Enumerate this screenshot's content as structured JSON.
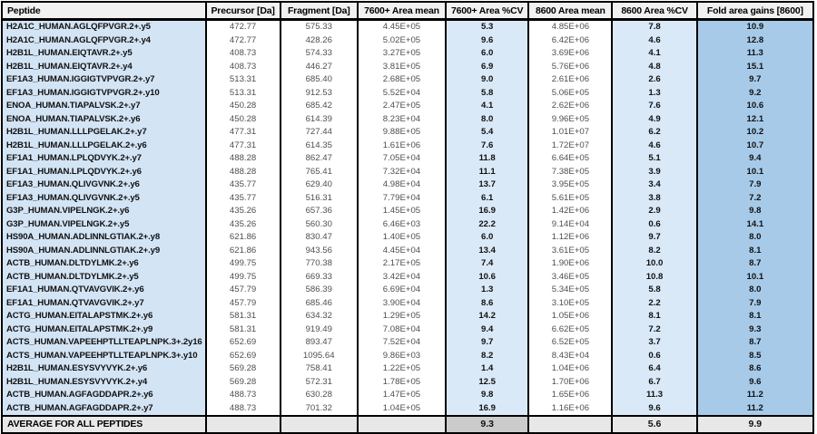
{
  "colors": {
    "peptide_column_bg": "#d3e4f5",
    "cv_column_bg": "#dae9f8",
    "fold_column_bg": "#a7cae9",
    "header_bg": "#f1f1f1",
    "average_row_bg": "#e8e8e8",
    "average_cv7600_bg": "#cbcbcb",
    "grid_border": "#000000",
    "number_text": "#4f4f4f",
    "bold_text": "#111111"
  },
  "table": {
    "columns": [
      {
        "id": "peptide",
        "label": "Peptide"
      },
      {
        "id": "precursor",
        "label": "Precursor [Da]"
      },
      {
        "id": "fragment",
        "label": "Fragment [Da]"
      },
      {
        "id": "mean7600",
        "label": "7600+ Area mean"
      },
      {
        "id": "cv7600",
        "label": "7600+ Area %CV"
      },
      {
        "id": "mean8600",
        "label": "8600 Area mean"
      },
      {
        "id": "cv8600",
        "label": "8600 Area %CV"
      },
      {
        "id": "fold",
        "label": "Fold area gains [8600]"
      }
    ],
    "rows": [
      {
        "peptide": "H2A1C_HUMAN.AGLQFPVGR.2+.y5",
        "precursor": "472.77",
        "fragment": "575.33",
        "mean7600": "4.45E+05",
        "cv7600": "5.3",
        "mean8600": "4.85E+06",
        "cv8600": "7.8",
        "fold": "10.9"
      },
      {
        "peptide": "H2A1C_HUMAN.AGLQFPVGR.2+.y4",
        "precursor": "472.77",
        "fragment": "428.26",
        "mean7600": "5.02E+05",
        "cv7600": "9.6",
        "mean8600": "6.42E+06",
        "cv8600": "4.6",
        "fold": "12.8"
      },
      {
        "peptide": "H2B1L_HUMAN.EIQTAVR.2+.y5",
        "precursor": "408.73",
        "fragment": "574.33",
        "mean7600": "3.27E+05",
        "cv7600": "6.0",
        "mean8600": "3.69E+06",
        "cv8600": "4.1",
        "fold": "11.3"
      },
      {
        "peptide": "H2B1L_HUMAN.EIQTAVR.2+.y4",
        "precursor": "408.73",
        "fragment": "446.27",
        "mean7600": "3.81E+05",
        "cv7600": "6.9",
        "mean8600": "5.76E+06",
        "cv8600": "4.8",
        "fold": "15.1"
      },
      {
        "peptide": "EF1A3_HUMAN.IGGIGTVPVGR.2+.y7",
        "precursor": "513.31",
        "fragment": "685.40",
        "mean7600": "2.68E+05",
        "cv7600": "9.0",
        "mean8600": "2.61E+06",
        "cv8600": "2.6",
        "fold": "9.7"
      },
      {
        "peptide": "EF1A3_HUMAN.IGGIGTVPVGR.2+.y10",
        "precursor": "513.31",
        "fragment": "912.53",
        "mean7600": "5.52E+04",
        "cv7600": "5.8",
        "mean8600": "5.06E+05",
        "cv8600": "1.3",
        "fold": "9.2"
      },
      {
        "peptide": "ENOA_HUMAN.TIAPALVSK.2+.y7",
        "precursor": "450.28",
        "fragment": "685.42",
        "mean7600": "2.47E+05",
        "cv7600": "4.1",
        "mean8600": "2.62E+06",
        "cv8600": "7.6",
        "fold": "10.6"
      },
      {
        "peptide": "ENOA_HUMAN.TIAPALVSK.2+.y6",
        "precursor": "450.28",
        "fragment": "614.39",
        "mean7600": "8.23E+04",
        "cv7600": "8.0",
        "mean8600": "9.96E+05",
        "cv8600": "4.9",
        "fold": "12.1"
      },
      {
        "peptide": "H2B1L_HUMAN.LLLPGELAK.2+.y7",
        "precursor": "477.31",
        "fragment": "727.44",
        "mean7600": "9.88E+05",
        "cv7600": "5.4",
        "mean8600": "1.01E+07",
        "cv8600": "6.2",
        "fold": "10.2"
      },
      {
        "peptide": "H2B1L_HUMAN.LLLPGELAK.2+.y6",
        "precursor": "477.31",
        "fragment": "614.35",
        "mean7600": "1.61E+06",
        "cv7600": "7.6",
        "mean8600": "1.72E+07",
        "cv8600": "4.6",
        "fold": "10.7"
      },
      {
        "peptide": "EF1A1_HUMAN.LPLQDVYK.2+.y7",
        "precursor": "488.28",
        "fragment": "862.47",
        "mean7600": "7.05E+04",
        "cv7600": "11.8",
        "mean8600": "6.64E+05",
        "cv8600": "5.1",
        "fold": "9.4"
      },
      {
        "peptide": "EF1A1_HUMAN.LPLQDVYK.2+.y6",
        "precursor": "488.28",
        "fragment": "765.41",
        "mean7600": "7.32E+04",
        "cv7600": "11.1",
        "mean8600": "7.38E+05",
        "cv8600": "3.9",
        "fold": "10.1"
      },
      {
        "peptide": "EF1A3_HUMAN.QLIVGVNK.2+.y6",
        "precursor": "435.77",
        "fragment": "629.40",
        "mean7600": "4.98E+04",
        "cv7600": "13.7",
        "mean8600": "3.95E+05",
        "cv8600": "3.4",
        "fold": "7.9"
      },
      {
        "peptide": "EF1A3_HUMAN.QLIVGVNK.2+.y5",
        "precursor": "435.77",
        "fragment": "516.31",
        "mean7600": "7.79E+04",
        "cv7600": "6.1",
        "mean8600": "5.61E+05",
        "cv8600": "3.8",
        "fold": "7.2"
      },
      {
        "peptide": "G3P_HUMAN.VIPELNGK.2+.y6",
        "precursor": "435.26",
        "fragment": "657.36",
        "mean7600": "1.45E+05",
        "cv7600": "16.9",
        "mean8600": "1.42E+06",
        "cv8600": "2.9",
        "fold": "9.8"
      },
      {
        "peptide": "G3P_HUMAN.VIPELNGK.2+.y5",
        "precursor": "435.26",
        "fragment": "560.30",
        "mean7600": "6.46E+03",
        "cv7600": "22.2",
        "mean8600": "9.14E+04",
        "cv8600": "0.6",
        "fold": "14.1"
      },
      {
        "peptide": "HS90A_HUMAN.ADLINNLGTIAK.2+.y8",
        "precursor": "621.86",
        "fragment": "830.47",
        "mean7600": "1.40E+05",
        "cv7600": "6.0",
        "mean8600": "1.12E+06",
        "cv8600": "9.7",
        "fold": "8.0"
      },
      {
        "peptide": "HS90A_HUMAN.ADLINNLGTIAK.2+.y9",
        "precursor": "621.86",
        "fragment": "943.56",
        "mean7600": "4.45E+04",
        "cv7600": "13.4",
        "mean8600": "3.61E+05",
        "cv8600": "8.2",
        "fold": "8.1"
      },
      {
        "peptide": "ACTB_HUMAN.DLTDYLMK.2+.y6",
        "precursor": "499.75",
        "fragment": "770.38",
        "mean7600": "2.17E+05",
        "cv7600": "7.4",
        "mean8600": "1.90E+06",
        "cv8600": "10.0",
        "fold": "8.7"
      },
      {
        "peptide": "ACTB_HUMAN.DLTDYLMK.2+.y5",
        "precursor": "499.75",
        "fragment": "669.33",
        "mean7600": "3.42E+04",
        "cv7600": "10.6",
        "mean8600": "3.46E+05",
        "cv8600": "10.8",
        "fold": "10.1"
      },
      {
        "peptide": "EF1A1_HUMAN.QTVAVGVIK.2+.y6",
        "precursor": "457.79",
        "fragment": "586.39",
        "mean7600": "6.69E+04",
        "cv7600": "1.3",
        "mean8600": "5.34E+05",
        "cv8600": "5.8",
        "fold": "8.0"
      },
      {
        "peptide": "EF1A1_HUMAN.QTVAVGVIK.2+.y7",
        "precursor": "457.79",
        "fragment": "685.46",
        "mean7600": "3.90E+04",
        "cv7600": "8.6",
        "mean8600": "3.10E+05",
        "cv8600": "2.2",
        "fold": "7.9"
      },
      {
        "peptide": "ACTG_HUMAN.EITALAPSTMK.2+.y6",
        "precursor": "581.31",
        "fragment": "634.32",
        "mean7600": "1.29E+05",
        "cv7600": "14.2",
        "mean8600": "1.05E+06",
        "cv8600": "8.1",
        "fold": "8.1"
      },
      {
        "peptide": "ACTG_HUMAN.EITALAPSTMK.2+.y9",
        "precursor": "581.31",
        "fragment": "919.49",
        "mean7600": "7.08E+04",
        "cv7600": "9.4",
        "mean8600": "6.62E+05",
        "cv8600": "7.2",
        "fold": "9.3"
      },
      {
        "peptide": "ACTS_HUMAN.VAPEEHPTLLTEAPLNPK.3+.2y16",
        "precursor": "652.69",
        "fragment": "893.47",
        "mean7600": "7.52E+04",
        "cv7600": "9.7",
        "mean8600": "6.52E+05",
        "cv8600": "3.7",
        "fold": "8.7"
      },
      {
        "peptide": "ACTS_HUMAN.VAPEEHPTLLTEAPLNPK.3+.y10",
        "precursor": "652.69",
        "fragment": "1095.64",
        "mean7600": "9.86E+03",
        "cv7600": "8.2",
        "mean8600": "8.43E+04",
        "cv8600": "0.6",
        "fold": "8.5"
      },
      {
        "peptide": "H2B1L_HUMAN.ESYSVYVYK.2+.y6",
        "precursor": "569.28",
        "fragment": "758.41",
        "mean7600": "1.22E+05",
        "cv7600": "1.4",
        "mean8600": "1.04E+06",
        "cv8600": "6.4",
        "fold": "8.6"
      },
      {
        "peptide": "H2B1L_HUMAN.ESYSVYVYK.2+.y4",
        "precursor": "569.28",
        "fragment": "572.31",
        "mean7600": "1.78E+05",
        "cv7600": "12.5",
        "mean8600": "1.70E+06",
        "cv8600": "6.7",
        "fold": "9.6"
      },
      {
        "peptide": "ACTB_HUMAN.AGFAGDDAPR.2+.y6",
        "precursor": "488.73",
        "fragment": "630.28",
        "mean7600": "1.47E+05",
        "cv7600": "9.8",
        "mean8600": "1.65E+06",
        "cv8600": "11.3",
        "fold": "11.2"
      },
      {
        "peptide": "ACTB_HUMAN.AGFAGDDAPR.2+.y7",
        "precursor": "488.73",
        "fragment": "701.32",
        "mean7600": "1.04E+05",
        "cv7600": "16.9",
        "mean8600": "1.16E+06",
        "cv8600": "9.6",
        "fold": "11.2"
      }
    ],
    "average": {
      "label": "AVERAGE FOR ALL PEPTIDES",
      "cv7600": "9.3",
      "cv8600": "5.6",
      "fold": "9.9"
    }
  }
}
